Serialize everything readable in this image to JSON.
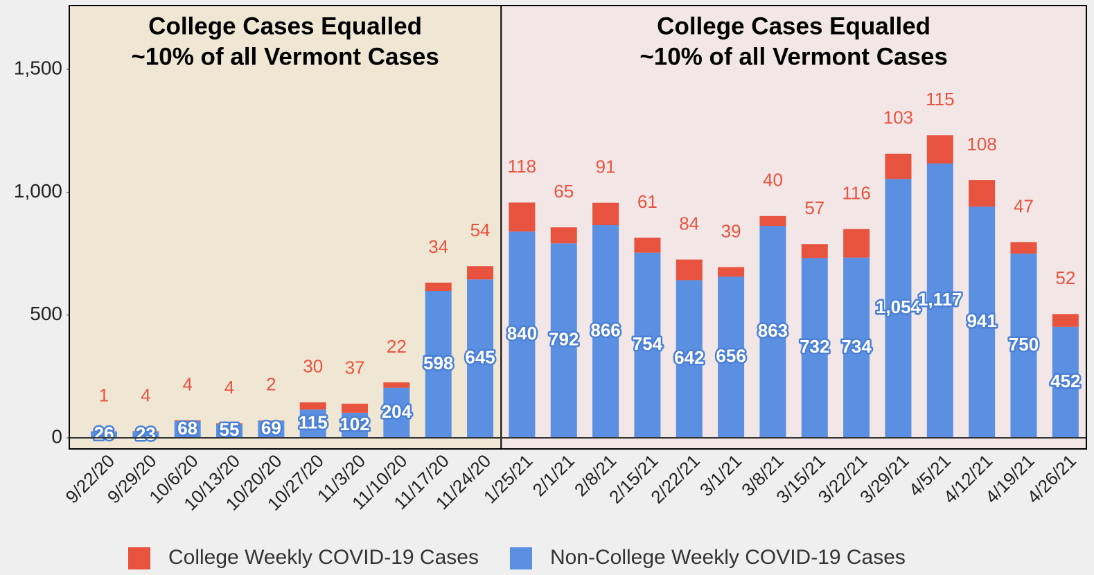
{
  "chart_data": {
    "type": "stacked_bar",
    "categories": [
      "9/22/20",
      "9/29/20",
      "10/6/20",
      "10/13/20",
      "10/20/20",
      "10/27/20",
      "11/3/20",
      "11/10/20",
      "11/17/20",
      "11/24/20",
      "1/25/21",
      "2/1/21",
      "2/8/21",
      "2/15/21",
      "2/22/21",
      "3/1/21",
      "3/8/21",
      "3/15/21",
      "3/22/21",
      "3/29/21",
      "4/5/21",
      "4/12/21",
      "4/19/21",
      "4/26/21"
    ],
    "series": [
      {
        "name": "Non-College Weekly COVID-19 Cases",
        "color": "#5b8fe2",
        "values": [
          26,
          23,
          68,
          55,
          69,
          115,
          102,
          204,
          598,
          645,
          840,
          792,
          866,
          754,
          642,
          656,
          863,
          732,
          734,
          1054,
          1117,
          941,
          750,
          452
        ],
        "value_labels": [
          "26",
          "23",
          "68",
          "55",
          "69",
          "115",
          "102",
          "204",
          "598",
          "645",
          "840",
          "792",
          "866",
          "754",
          "642",
          "656",
          "863",
          "732",
          "734",
          "1,054",
          "1,117",
          "941",
          "750",
          "452"
        ]
      },
      {
        "name": "College Weekly COVID-19 Cases",
        "color": "#e8533f",
        "values": [
          1,
          4,
          4,
          4,
          2,
          30,
          37,
          22,
          34,
          54,
          118,
          65,
          91,
          61,
          84,
          39,
          40,
          57,
          116,
          103,
          115,
          108,
          47,
          52
        ]
      }
    ],
    "legend_order": [
      "College Weekly COVID-19 Cases",
      "Non-College Weekly COVID-19 Cases"
    ],
    "annotations": [
      {
        "lines": [
          "College Cases Equalled",
          "~10% of all Vermont Cases"
        ],
        "from": "9/22/20",
        "to": "11/24/20",
        "background": "#efe6d3"
      },
      {
        "lines": [
          "College Cases Equalled",
          "~10% of all Vermont Cases"
        ],
        "from": "1/25/21",
        "to": "4/26/21",
        "background": "#f2e6e6"
      }
    ],
    "ylim": [
      -45,
      1760
    ],
    "yticks": [
      0,
      500,
      {
        "value": 1000,
        "label": "1,000"
      },
      {
        "value": 1500,
        "label": "1,500"
      }
    ],
    "legend": "bottom"
  }
}
